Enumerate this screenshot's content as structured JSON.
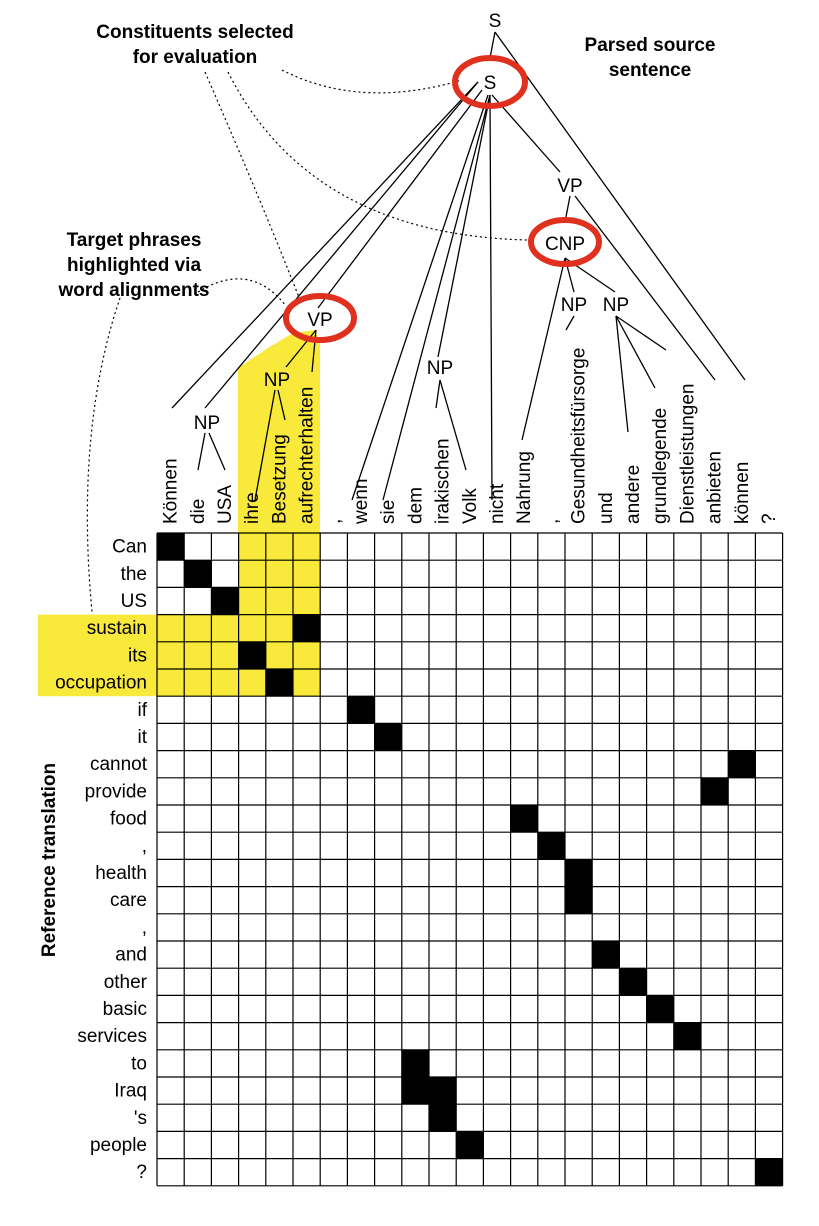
{
  "annotations": {
    "constituents_line1": "Constituents selected",
    "constituents_line2": "for evaluation",
    "parsed_line1": "Parsed source",
    "parsed_line2": "sentence",
    "target_line1": "Target phrases",
    "target_line2": "highlighted via",
    "target_line3": "word alignments",
    "reference_axis": "Reference translation"
  },
  "source_words": [
    "Können",
    "die",
    "USA",
    "ihre",
    "Besetzung",
    "aufrechterhalten",
    ",",
    "wenn",
    "sie",
    "dem",
    "irakischen",
    "Volk",
    "nicht",
    "Nahrung",
    ",",
    "Gesundheitsfürsorge",
    "und",
    "andere",
    "grundlegende",
    "Dienstleistungen",
    "anbieten",
    "können",
    "?"
  ],
  "target_words": [
    "Can",
    "the",
    "US",
    "sustain",
    "its",
    "occupation",
    "if",
    "it",
    "cannot",
    "provide",
    "food",
    ",",
    "health",
    "care",
    ",",
    "and",
    "other",
    "basic",
    "services",
    "to",
    "Iraq",
    "'s",
    "people",
    "?"
  ],
  "alignments": [
    [
      0,
      0
    ],
    [
      1,
      1
    ],
    [
      2,
      2
    ],
    [
      3,
      5
    ],
    [
      4,
      3
    ],
    [
      5,
      4
    ],
    [
      6,
      7
    ],
    [
      7,
      8
    ],
    [
      8,
      21
    ],
    [
      9,
      20
    ],
    [
      10,
      13
    ],
    [
      11,
      14
    ],
    [
      12,
      15
    ],
    [
      13,
      15
    ],
    [
      15,
      16
    ],
    [
      16,
      17
    ],
    [
      17,
      18
    ],
    [
      18,
      19
    ],
    [
      19,
      9
    ],
    [
      20,
      9
    ],
    [
      20,
      10
    ],
    [
      21,
      10
    ],
    [
      22,
      11
    ],
    [
      23,
      22
    ]
  ],
  "highlight": {
    "source_cols": [
      3,
      4,
      5
    ],
    "target_rows": [
      3,
      4,
      5
    ],
    "color": "#f9e93a"
  },
  "tree_labels": {
    "root": "S",
    "s_inner": "S",
    "vp_main": "VP",
    "cnp": "CNP",
    "vp_selected": "VP",
    "np_object": "NP",
    "np_subject": "NP",
    "np_volk": "NP",
    "np_nahrung": "NP",
    "np_dienst": "NP"
  },
  "selected_constituents": [
    "s_inner",
    "cnp",
    "vp_selected"
  ],
  "circle_color": "#e0301e"
}
